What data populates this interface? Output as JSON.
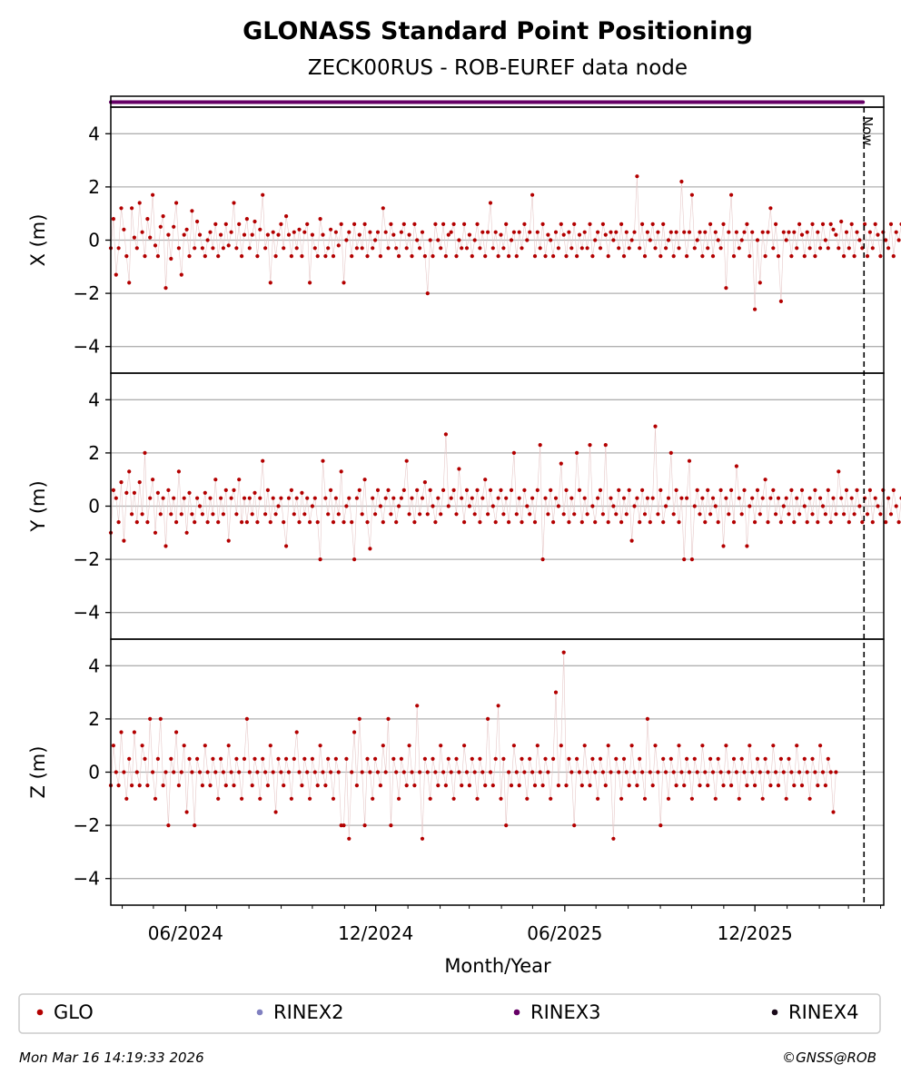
{
  "chart_data": {
    "type": "scatter",
    "title": "GLONASS Standard Point Positioning",
    "subtitle": "ZECK00RUS - ROB-EUREF data node",
    "xlabel": "Month/Year",
    "x_ticks": [
      "06/2024",
      "12/2024",
      "06/2025",
      "12/2025"
    ],
    "x_range": [
      "2024-03-21",
      "2026-04-04"
    ],
    "now_date": "2026-03-16",
    "now_label": "Now",
    "grid": true,
    "legend_position": "bottom",
    "colors": {
      "GLO": "#b30000",
      "RINEX2": "#8080c0",
      "RINEX3": "#660066",
      "RINEX4": "#1a0a1a"
    },
    "legend": [
      "GLO",
      "RINEX2",
      "RINEX3",
      "RINEX4"
    ],
    "rinex_strip": {
      "series": "RINEX3",
      "start": "2024-03-21",
      "end": "2026-03-15"
    },
    "panels": [
      {
        "ylabel": "X (m)",
        "ylim": [
          -5,
          5
        ],
        "yticks": [
          4,
          2,
          0,
          -2,
          -4
        ],
        "series": [
          {
            "name": "GLO",
            "start": "2024-03-21",
            "values": [
              -0.3,
              0.8,
              -1.3,
              -0.3,
              1.2,
              0.4,
              -0.6,
              -1.6,
              1.2,
              0.1,
              -0.3,
              1.4,
              0.3,
              -0.6,
              0.8,
              0.1,
              1.7,
              -0.2,
              -0.6,
              0.5,
              0.9,
              -1.8,
              0.2,
              -0.7,
              0.5,
              1.4,
              -0.3,
              -1.3,
              0.2,
              0.4,
              -0.6,
              1.1,
              -0.3,
              0.7,
              0.2,
              -0.3,
              -0.6,
              0.0,
              0.3,
              -0.3,
              0.6,
              -0.6,
              0.2,
              -0.3,
              0.6,
              -0.2,
              0.3,
              1.4,
              -0.3,
              0.6,
              -0.6,
              0.2,
              0.8,
              -0.3,
              0.2,
              0.7,
              -0.6,
              0.4,
              1.7,
              -0.3,
              0.2,
              -1.6,
              0.3,
              -0.6,
              0.2,
              0.6,
              -0.3,
              0.9,
              0.2,
              -0.6,
              0.3,
              -0.3,
              0.4,
              -0.6,
              0.3,
              0.6,
              -1.6,
              0.2,
              -0.3,
              -0.6,
              0.8,
              0.2,
              -0.6,
              -0.3,
              0.4,
              -0.6,
              0.3,
              -0.2,
              0.6,
              -1.6,
              0.0,
              0.3,
              -0.6,
              0.6,
              -0.3,
              0.2,
              -0.3,
              0.6,
              -0.6,
              0.3,
              -0.3,
              0.0,
              0.3,
              -0.6,
              1.2,
              0.3,
              -0.3,
              0.6,
              0.2,
              -0.3,
              -0.6,
              0.3,
              0.6,
              -0.3,
              0.2,
              -0.6,
              0.6,
              0.0,
              -0.3,
              0.3,
              -0.6,
              -2.0,
              0.0,
              -0.6,
              0.6,
              0.0,
              -0.3,
              0.6,
              -0.6,
              0.2,
              0.3,
              0.6,
              -0.6,
              0.0,
              -0.3,
              0.6,
              -0.3,
              0.2,
              -0.6,
              0.0,
              0.6,
              -0.3,
              0.3,
              -0.6,
              0.3,
              1.4,
              -0.3,
              0.3,
              -0.6,
              0.2,
              -0.3,
              0.6,
              -0.6,
              0.0,
              0.3,
              -0.6,
              0.3,
              -0.3,
              0.6,
              0.0,
              0.3,
              1.7,
              -0.6,
              0.3,
              -0.3,
              0.6,
              -0.6,
              0.2,
              0.0,
              -0.6,
              0.3,
              -0.3,
              0.6,
              0.2,
              -0.6,
              0.3,
              -0.3,
              0.6,
              -0.6,
              0.2,
              -0.3,
              0.3,
              -0.3,
              0.6,
              -0.6,
              0.0,
              0.3,
              -0.3,
              0.6,
              0.2,
              -0.6,
              0.3,
              0.0,
              0.3,
              -0.3,
              0.6,
              -0.6,
              0.3,
              -0.3,
              0.0,
              0.3,
              2.4,
              -0.3,
              0.6,
              -0.6,
              0.3,
              0.0,
              0.6,
              -0.3,
              0.3,
              -0.6,
              0.6,
              -0.3,
              0.0,
              0.3,
              -0.6,
              0.3,
              -0.3,
              2.2,
              0.3,
              -0.6,
              0.3,
              1.7,
              -0.3,
              0.0,
              0.3,
              -0.6,
              0.3,
              -0.3,
              0.6,
              -0.6,
              0.3,
              0.0,
              -0.3,
              0.6,
              -1.8,
              0.3,
              1.7,
              -0.6,
              0.3,
              -0.3,
              0.0,
              0.3,
              0.6,
              -0.6,
              0.3,
              -2.6,
              0.0,
              -1.6,
              0.3,
              -0.6,
              0.3,
              1.2,
              -0.3,
              0.6,
              -0.6,
              -2.3,
              0.3,
              0.0,
              0.3,
              -0.6,
              0.3,
              -0.3,
              0.6,
              0.2,
              -0.6,
              0.3,
              -0.3,
              0.6,
              -0.6,
              0.3,
              -0.3,
              0.6,
              0.0,
              -0.3,
              0.6,
              0.4,
              0.2,
              -0.3,
              0.7,
              -0.6,
              0.3,
              -0.3,
              0.6,
              -0.6,
              0.3,
              0.0,
              -0.3,
              0.6,
              -0.6,
              0.3,
              -0.3,
              0.6,
              0.2,
              -0.6,
              0.3,
              0.0,
              -0.3,
              0.6,
              -0.6,
              0.3,
              0.0,
              0.6
            ]
          }
        ]
      },
      {
        "ylabel": "Y (m)",
        "ylim": [
          -5,
          5
        ],
        "yticks": [
          4,
          2,
          0,
          -2,
          -4
        ],
        "series": [
          {
            "name": "GLO",
            "start": "2024-03-21",
            "values": [
              -1.0,
              0.6,
              0.3,
              -0.6,
              0.9,
              -1.3,
              0.5,
              1.3,
              -0.3,
              0.5,
              -0.6,
              0.9,
              -0.3,
              2.0,
              -0.6,
              0.3,
              1.0,
              -1.0,
              0.5,
              -0.3,
              0.3,
              -1.5,
              0.6,
              -0.3,
              0.3,
              -0.6,
              1.3,
              -0.3,
              0.3,
              -1.0,
              0.5,
              -0.3,
              -0.6,
              0.3,
              0.0,
              -0.3,
              0.5,
              -0.6,
              0.3,
              -0.3,
              1.0,
              -0.6,
              0.3,
              -0.3,
              0.6,
              -1.3,
              0.3,
              0.6,
              -0.3,
              1.0,
              -0.6,
              0.3,
              -0.6,
              0.3,
              -0.3,
              0.5,
              -0.6,
              0.3,
              1.7,
              -0.3,
              0.6,
              -0.6,
              0.3,
              -0.3,
              0.0,
              0.3,
              -0.6,
              -1.5,
              0.3,
              0.6,
              -0.3,
              0.3,
              -0.6,
              0.5,
              -0.3,
              0.3,
              -0.6,
              0.0,
              0.3,
              -0.6,
              -2.0,
              1.7,
              0.3,
              -0.3,
              0.6,
              -0.6,
              0.3,
              -0.3,
              1.3,
              -0.6,
              0.0,
              0.3,
              -0.6,
              -2.0,
              0.3,
              0.6,
              -0.3,
              1.0,
              -0.6,
              -1.6,
              0.3,
              -0.3,
              0.6,
              0.0,
              -0.6,
              0.3,
              0.6,
              -0.3,
              0.3,
              -0.6,
              0.0,
              0.3,
              0.6,
              1.7,
              -0.3,
              0.3,
              -0.6,
              0.6,
              -0.3,
              0.3,
              0.9,
              -0.3,
              0.6,
              0.0,
              -0.6,
              0.3,
              -0.3,
              0.6,
              2.7,
              0.0,
              0.3,
              0.6,
              -0.3,
              1.4,
              0.3,
              -0.6,
              0.6,
              0.0,
              0.3,
              -0.3,
              0.6,
              -0.6,
              0.3,
              1.0,
              -0.3,
              0.6,
              0.0,
              -0.6,
              0.3,
              0.6,
              -0.3,
              0.3,
              -0.6,
              0.6,
              2.0,
              -0.3,
              0.3,
              -0.6,
              0.6,
              0.0,
              -0.3,
              0.3,
              -0.6,
              0.6,
              2.3,
              -2.0,
              0.3,
              -0.3,
              0.6,
              -0.6,
              0.3,
              0.0,
              1.6,
              -0.3,
              0.6,
              -0.6,
              0.3,
              -0.3,
              2.0,
              0.6,
              -0.6,
              0.3,
              -0.3,
              2.3,
              0.0,
              -0.6,
              0.3,
              0.6,
              -0.3,
              2.3,
              -0.6,
              0.3,
              0.0,
              -0.3,
              0.6,
              -0.6,
              0.3,
              -0.3,
              0.6,
              -1.3,
              0.0,
              0.3,
              -0.6,
              0.6,
              -0.3,
              0.3,
              -0.6,
              0.3,
              3.0,
              -0.3,
              0.6,
              -0.6,
              0.0,
              0.3,
              2.0,
              -0.3,
              0.6,
              -0.6,
              0.3,
              -2.0,
              0.3,
              1.7,
              -2.0,
              0.0,
              0.6,
              -0.3,
              0.3,
              -0.6,
              0.6,
              -0.3,
              0.3,
              0.0,
              -0.6,
              0.6,
              -1.5,
              0.3,
              -0.3,
              0.6,
              -0.6,
              1.5,
              0.3,
              -0.3,
              0.6,
              -1.5,
              0.0,
              0.3,
              -0.6,
              0.6,
              -0.3,
              0.3,
              1.0,
              -0.6,
              0.3,
              0.6,
              -0.3,
              0.3,
              -0.6,
              0.0,
              0.3,
              -0.3,
              0.6,
              -0.6,
              0.3,
              -0.3,
              0.6,
              0.0,
              -0.6,
              0.3,
              -0.3,
              0.6,
              -0.6,
              0.3,
              0.0,
              -0.3,
              0.6,
              -0.6,
              0.3,
              -0.3,
              1.3,
              0.3,
              -0.3,
              0.6,
              -0.6,
              0.3,
              -0.3,
              0.6,
              0.0,
              -0.6,
              0.3,
              -0.3,
              0.6,
              -0.6,
              0.3,
              0.0,
              -0.3,
              0.6,
              -0.6,
              0.3,
              -0.3,
              0.6,
              0.0,
              -0.6,
              0.3,
              -0.3,
              0.6,
              -0.6,
              0.3,
              0.0,
              0.3
            ]
          }
        ]
      },
      {
        "ylabel": "Z (m)",
        "ylim": [
          -5,
          5
        ],
        "yticks": [
          4,
          2,
          0,
          -2,
          -4
        ],
        "series": [
          {
            "name": "GLO",
            "start": "2024-03-21",
            "values": [
              -0.5,
              1.0,
              0.0,
              -0.5,
              1.5,
              0.0,
              -1.0,
              0.5,
              -0.5,
              1.5,
              0.0,
              -0.5,
              1.0,
              0.5,
              -0.5,
              2.0,
              0.0,
              -1.0,
              0.5,
              2.0,
              -0.5,
              0.0,
              -2.0,
              0.5,
              0.0,
              1.5,
              -0.5,
              0.0,
              1.0,
              -1.5,
              0.5,
              0.0,
              -2.0,
              0.5,
              0.0,
              -0.5,
              1.0,
              0.0,
              -0.5,
              0.5,
              0.0,
              -1.0,
              0.5,
              0.0,
              -0.5,
              1.0,
              0.0,
              -0.5,
              0.5,
              0.0,
              -1.0,
              0.5,
              2.0,
              0.0,
              -0.5,
              0.5,
              0.0,
              -1.0,
              0.5,
              0.0,
              -0.5,
              1.0,
              0.0,
              -1.5,
              0.5,
              0.0,
              -0.5,
              0.5,
              0.0,
              -1.0,
              0.5,
              1.5,
              0.0,
              -0.5,
              0.5,
              0.0,
              -1.0,
              0.5,
              0.0,
              -0.5,
              1.0,
              0.0,
              -0.5,
              0.5,
              0.0,
              -1.0,
              0.5,
              0.0,
              -2.0,
              -2.0,
              0.5,
              -2.5,
              0.0,
              1.5,
              -0.5,
              2.0,
              0.0,
              -2.0,
              0.5,
              0.0,
              -1.0,
              0.5,
              0.0,
              -0.5,
              1.0,
              0.0,
              2.0,
              -2.0,
              0.5,
              0.0,
              -1.0,
              0.5,
              0.0,
              -0.5,
              1.0,
              0.0,
              -0.5,
              2.5,
              0.0,
              -2.5,
              0.5,
              0.0,
              -1.0,
              0.5,
              0.0,
              -0.5,
              1.0,
              0.0,
              -0.5,
              0.5,
              0.0,
              -1.0,
              0.5,
              0.0,
              -0.5,
              1.0,
              0.0,
              -0.5,
              0.5,
              0.0,
              -1.0,
              0.5,
              0.0,
              -0.5,
              2.0,
              0.0,
              -0.5,
              0.5,
              2.5,
              -1.0,
              0.5,
              -2.0,
              0.0,
              -0.5,
              1.0,
              0.0,
              -0.5,
              0.5,
              0.0,
              -1.0,
              0.5,
              0.0,
              -0.5,
              1.0,
              0.0,
              -0.5,
              0.5,
              0.0,
              -1.0,
              0.5,
              3.0,
              -0.5,
              1.0,
              4.5,
              -0.5,
              0.5,
              0.0,
              -2.0,
              0.5,
              0.0,
              -0.5,
              1.0,
              0.0,
              -0.5,
              0.5,
              0.0,
              -1.0,
              0.5,
              0.0,
              -0.5,
              1.0,
              0.0,
              -2.5,
              0.5,
              0.0,
              -1.0,
              0.5,
              0.0,
              -0.5,
              1.0,
              0.0,
              -0.5,
              0.5,
              0.0,
              -1.0,
              2.0,
              0.0,
              -0.5,
              1.0,
              0.0,
              -2.0,
              0.5,
              0.0,
              -1.0,
              0.5,
              0.0,
              -0.5,
              1.0,
              0.0,
              -0.5,
              0.5,
              0.0,
              -1.0,
              0.5,
              0.0,
              -0.5,
              1.0,
              0.0,
              -0.5,
              0.5,
              0.0,
              -1.0,
              0.5,
              0.0,
              -0.5,
              1.0,
              0.0,
              -0.5,
              0.5,
              0.0,
              -1.0,
              0.5,
              0.0,
              -0.5,
              1.0,
              0.0,
              -0.5,
              0.5,
              0.0,
              -1.0,
              0.5,
              0.0,
              -0.5,
              1.0,
              0.0,
              -0.5,
              0.5,
              0.0,
              -1.0,
              0.5,
              0.0,
              -0.5,
              1.0,
              0.0,
              -0.5,
              0.5,
              0.0,
              -1.0,
              0.5,
              0.0,
              -0.5,
              1.0,
              0.0,
              -0.5,
              0.5,
              0.0,
              -1.5,
              0.0
            ]
          }
        ]
      }
    ]
  },
  "footer": {
    "timestamp": "Mon Mar 16 14:19:33 2026",
    "credit": "©GNSS@ROB"
  }
}
